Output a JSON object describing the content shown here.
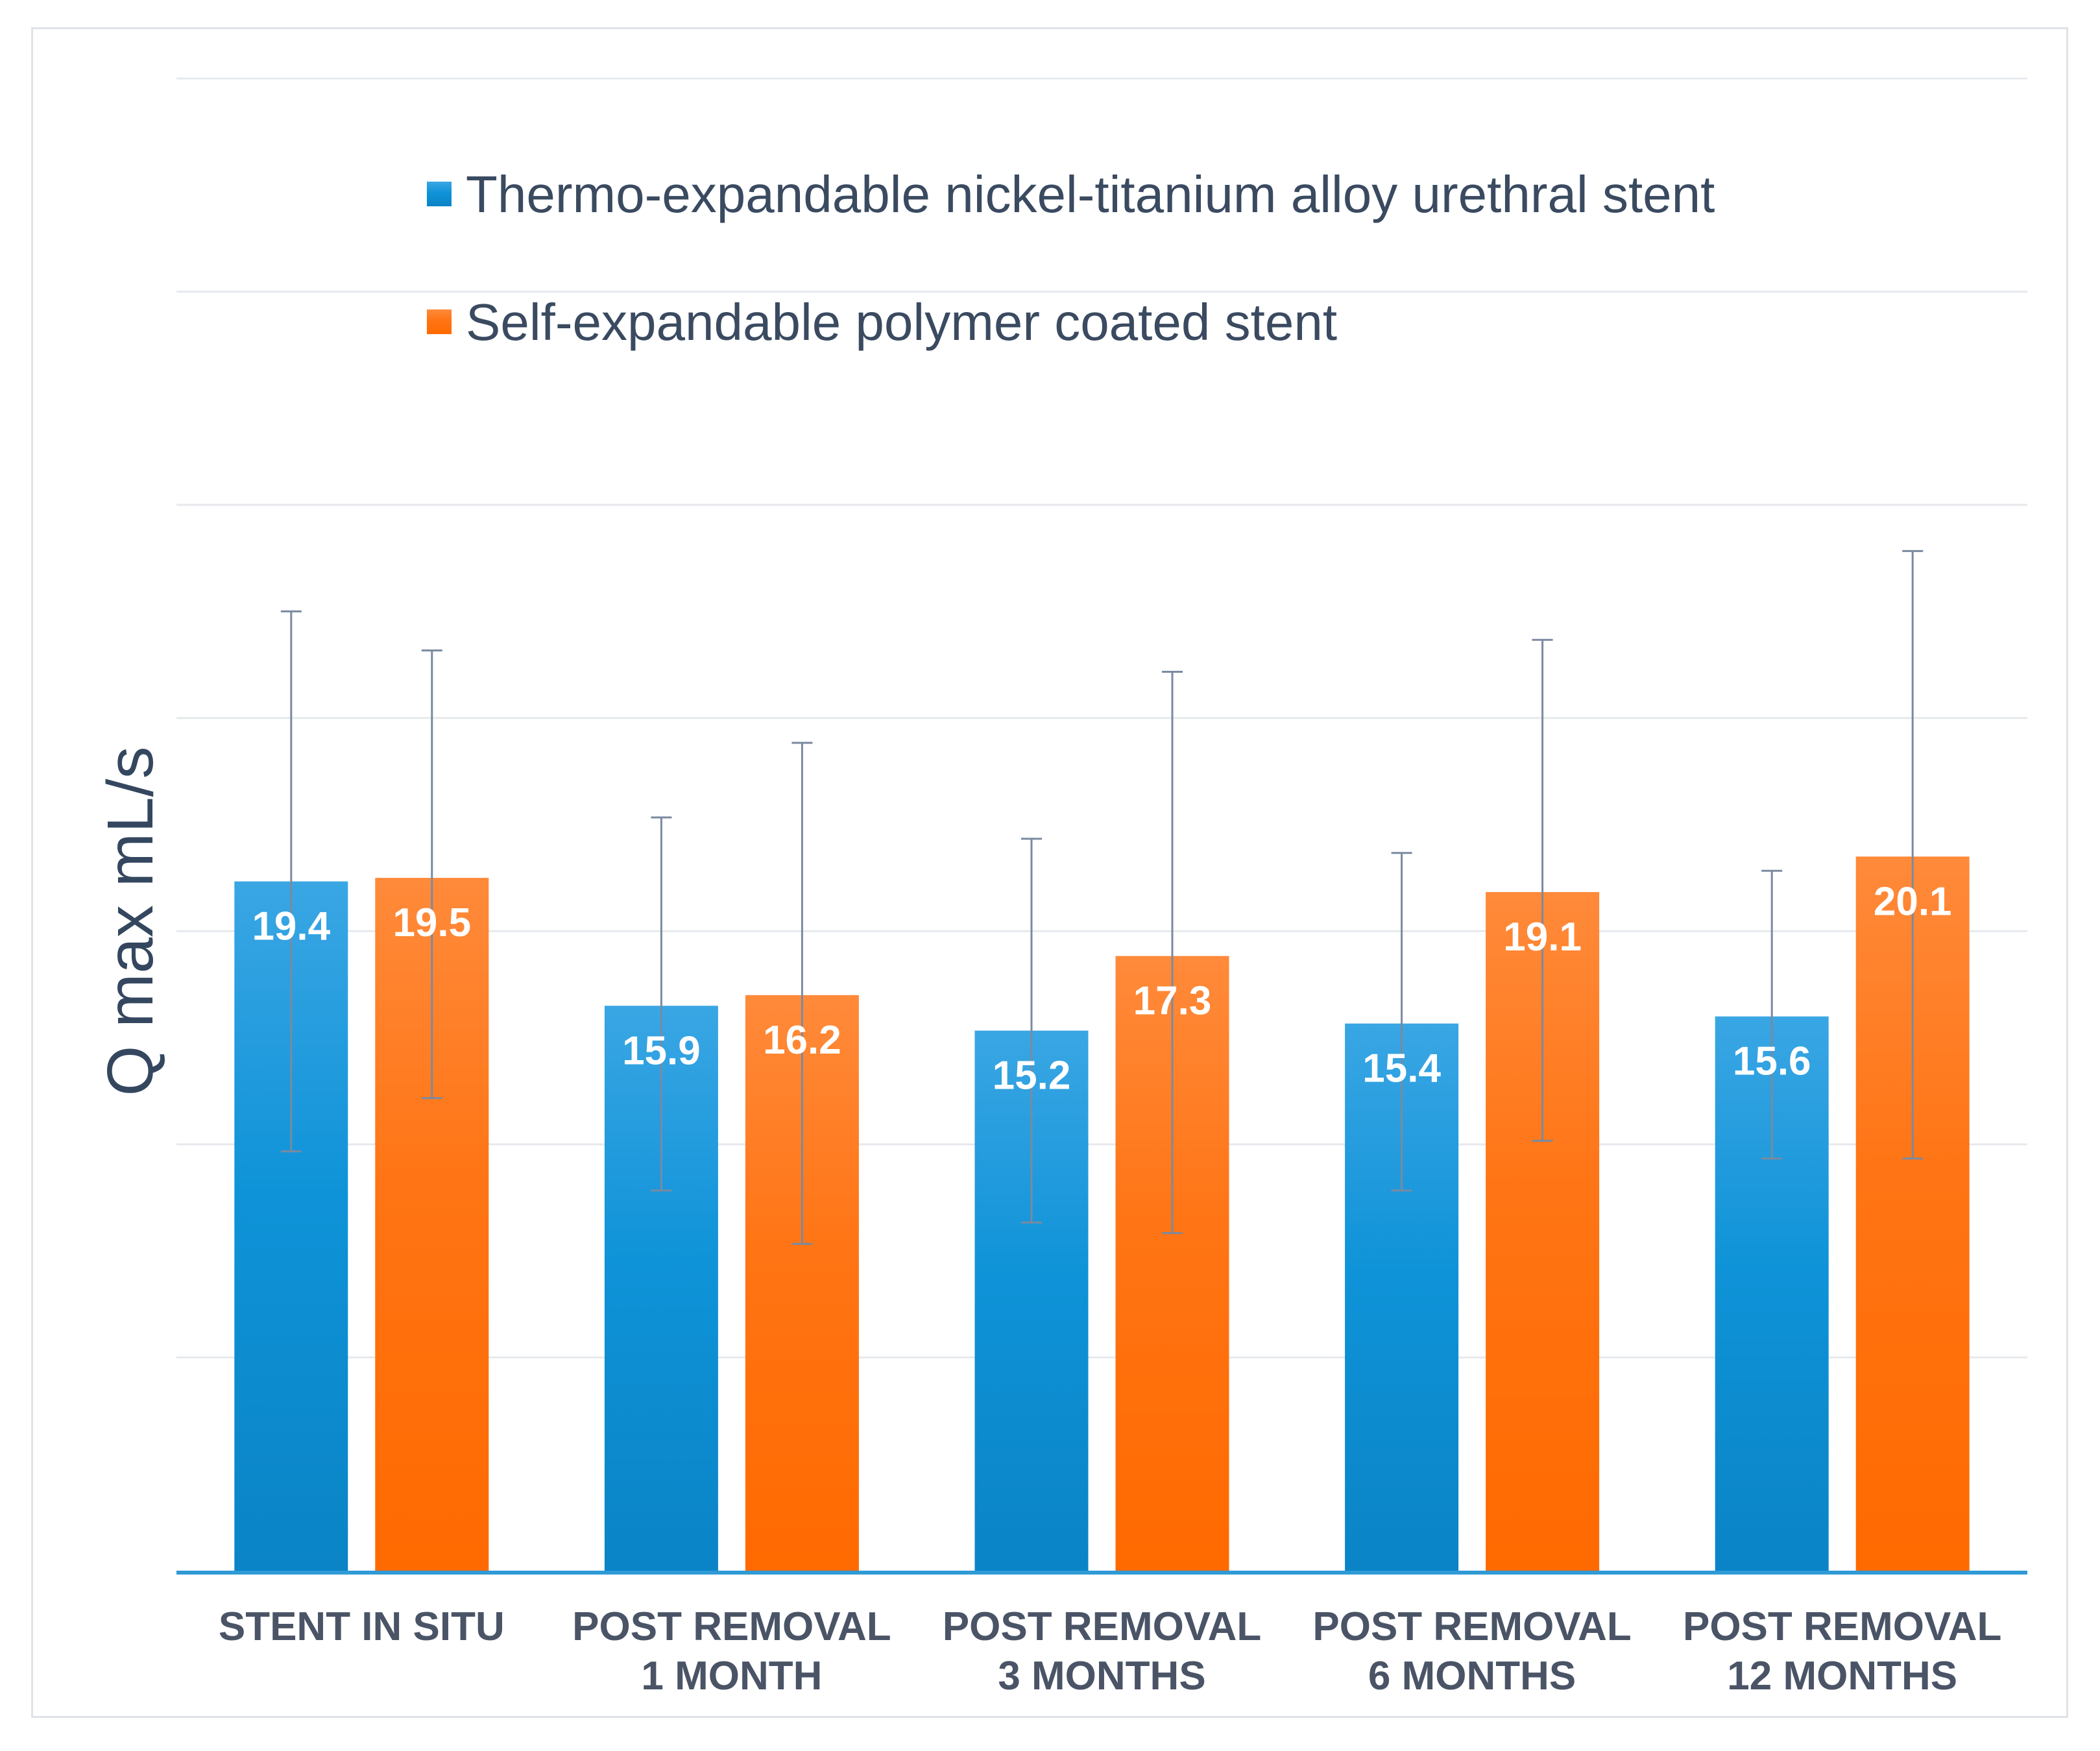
{
  "chart_data": {
    "type": "bar",
    "title": "",
    "xlabel": "",
    "ylabel": "Q max mL/s",
    "ylim": [
      0,
      42
    ],
    "grid": true,
    "legend_position": "top",
    "categories": [
      [
        "STENT IN SITU"
      ],
      [
        "POST REMOVAL",
        "1 MONTH"
      ],
      [
        "POST REMOVAL",
        "3 MONTHS"
      ],
      [
        "POST REMOVAL",
        "6 MONTHS"
      ],
      [
        "POST REMOVAL",
        "12 MONTHS"
      ]
    ],
    "series": [
      {
        "name": "Thermo-expandable nickel-titanium alloy urethral stent",
        "color": "#1f94d8",
        "values": [
          19.4,
          15.9,
          15.2,
          15.4,
          15.6
        ],
        "error_low": [
          11.8,
          10.7,
          9.8,
          10.7,
          11.6
        ],
        "error_high": [
          27.0,
          21.2,
          20.6,
          20.2,
          19.7
        ]
      },
      {
        "name": "Self-expandable polymer coated stent",
        "color": "#ff7a1f",
        "values": [
          19.5,
          16.2,
          17.3,
          19.1,
          20.1
        ],
        "error_low": [
          13.3,
          9.2,
          9.5,
          12.1,
          11.6
        ],
        "error_high": [
          25.9,
          23.3,
          25.3,
          26.2,
          28.7
        ]
      }
    ]
  }
}
